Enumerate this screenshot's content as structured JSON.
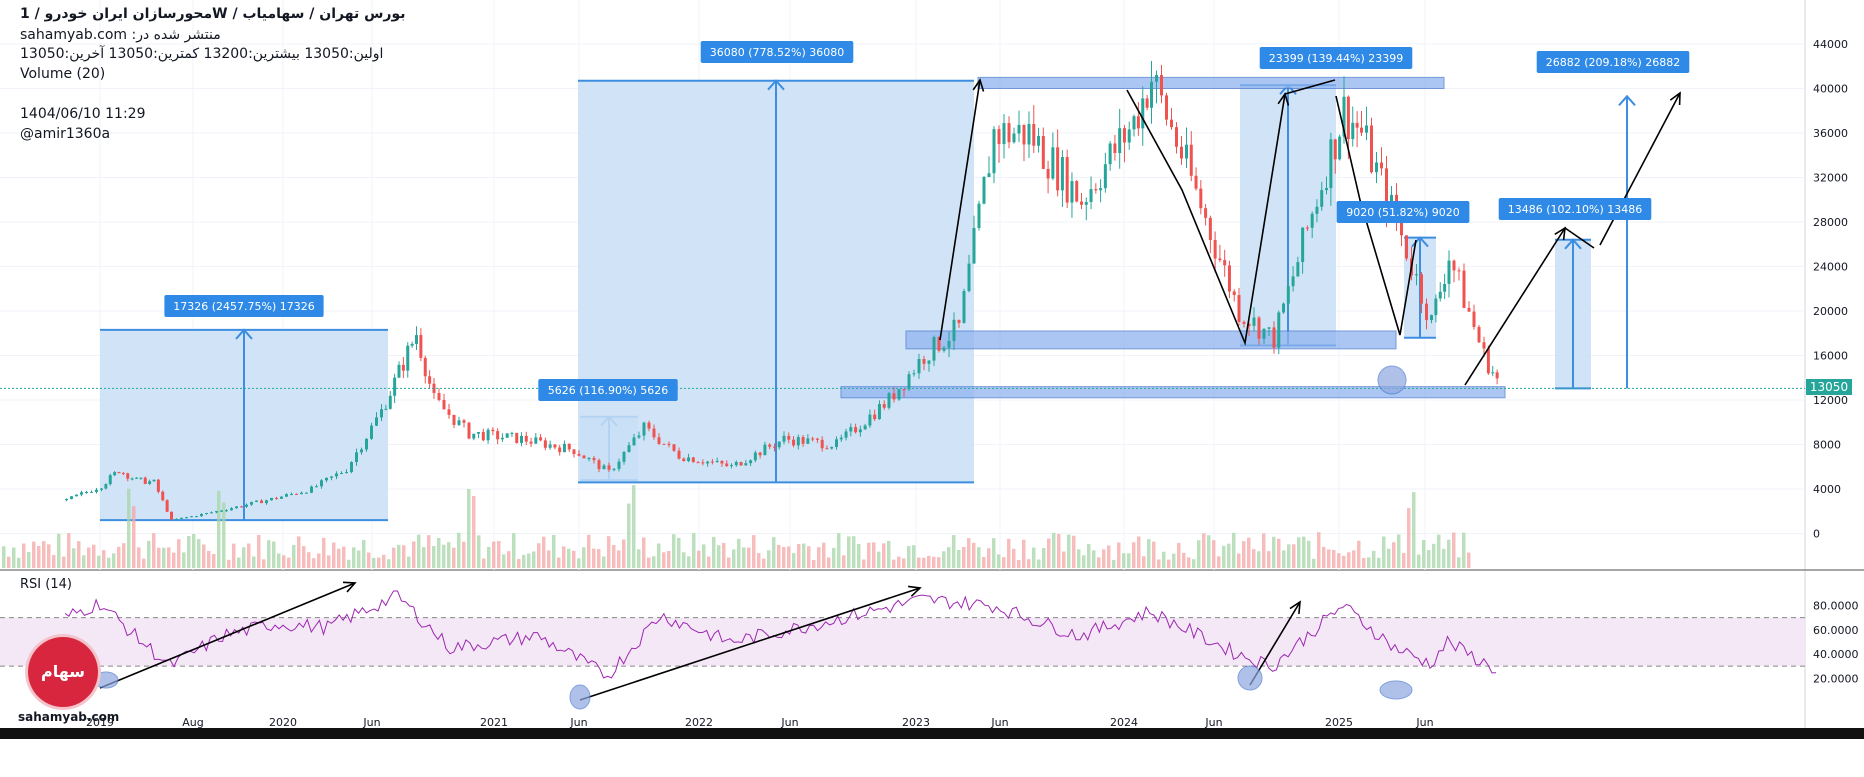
{
  "header": {
    "title": "محورسازان ایران خودرو / 1W / بورس تهران / سهامیاب",
    "published": "sahamyab.com :منتشر شده در",
    "ohlc": "اولین:13050  بیشترین:13200  کمترین:13050  آخرین:13050",
    "volume_label": "Volume (20)",
    "datetime": "1404/06/10 11:29",
    "author": "@amir1360a"
  },
  "rsi_label": "RSI (14)",
  "current_price": "13050",
  "logo": {
    "text": "سهام یاب",
    "site": "sahamyab.com"
  },
  "colors": {
    "up": "#26a69a",
    "down": "#ef5350",
    "box": "#2962ff",
    "rsi": "#9c27b0",
    "price_line": "#26a69a"
  },
  "chart_data": [
    {
      "type": "candlestick",
      "title": "محورسازان ایران خودرو / 1W / بورس تهران / سهامیاب",
      "y_ticks": [
        0,
        4000,
        8000,
        12000,
        16000,
        20000,
        24000,
        28000,
        32000,
        36000,
        40000,
        44000
      ],
      "ylim": [
        -1000,
        45500
      ],
      "x_ticks": [
        "2019",
        "Aug",
        "2020",
        "Jun",
        "2021",
        "Jun",
        "2022",
        "Jun",
        "2023",
        "Jun",
        "2024",
        "Jun",
        "2025",
        "Jun"
      ],
      "approx_close_path": [
        [
          "2018-11",
          3000
        ],
        [
          "2019-01",
          4300
        ],
        [
          "2019-02",
          5700
        ],
        [
          "2019-03",
          4800
        ],
        [
          "2019-04",
          4600
        ],
        [
          "2019-05",
          1200
        ],
        [
          "2019-07",
          1800
        ],
        [
          "2019-09",
          2500
        ],
        [
          "2019-11",
          3200
        ],
        [
          "2020-01",
          4000
        ],
        [
          "2020-03",
          5800
        ],
        [
          "2020-05",
          11000
        ],
        [
          "2020-06",
          14500
        ],
        [
          "2020-07",
          18000
        ],
        [
          "2020-08",
          12000
        ],
        [
          "2020-10",
          9000
        ],
        [
          "2021-01",
          8500
        ],
        [
          "2021-04",
          7500
        ],
        [
          "2021-06",
          5500
        ],
        [
          "2021-08",
          9500
        ],
        [
          "2021-10",
          7000
        ],
        [
          "2022-01",
          6000
        ],
        [
          "2022-04",
          8500
        ],
        [
          "2022-07",
          8000
        ],
        [
          "2022-10",
          12000
        ],
        [
          "2022-12",
          16000
        ],
        [
          "2023-02",
          18500
        ],
        [
          "2023-04",
          36000
        ],
        [
          "2023-06",
          36000
        ],
        [
          "2023-09",
          30000
        ],
        [
          "2023-12",
          37000
        ],
        [
          "2024-01",
          41000
        ],
        [
          "2024-03",
          33000
        ],
        [
          "2024-06",
          20000
        ],
        [
          "2024-08",
          17500
        ],
        [
          "2024-11",
          33000
        ],
        [
          "2024-12",
          38000
        ],
        [
          "2025-01",
          36000
        ],
        [
          "2025-03",
          28000
        ],
        [
          "2025-05",
          19000
        ],
        [
          "2025-06",
          25000
        ],
        [
          "2025-08",
          16000
        ],
        [
          "2025-09",
          13050
        ]
      ],
      "measurement_labels": [
        "17326 (2457.75%) 17326",
        "5626 (116.90%) 5626",
        "36080 (778.52%) 36080",
        "23399 (139.44%) 23399",
        "9020 (51.82%) 9020",
        "13486 (102.10%) 13486",
        "26882 (209.18%) 26882"
      ],
      "support_zones": [
        [
          40000,
          41000
        ],
        [
          16600,
          18200
        ],
        [
          12200,
          13200
        ]
      ],
      "last_price": 13050
    },
    {
      "type": "line",
      "title": "RSI (14)",
      "y_ticks": [
        "20.0000",
        "40.0000",
        "60.0000",
        "80.0000"
      ],
      "ylim": [
        15,
        95
      ],
      "bands": [
        30,
        70
      ],
      "approx_path": [
        [
          "2018-11",
          70
        ],
        [
          "2019-01",
          82
        ],
        [
          "2019-03",
          55
        ],
        [
          "2019-05",
          30
        ],
        [
          "2019-08",
          55
        ],
        [
          "2019-11",
          65
        ],
        [
          "2020-02",
          62
        ],
        [
          "2020-06",
          88
        ],
        [
          "2020-09",
          45
        ],
        [
          "2021-02",
          55
        ],
        [
          "2021-06",
          22
        ],
        [
          "2021-09",
          72
        ],
        [
          "2022-01",
          50
        ],
        [
          "2022-06",
          65
        ],
        [
          "2022-12",
          85
        ],
        [
          "2023-04",
          80
        ],
        [
          "2023-09",
          55
        ],
        [
          "2024-01",
          75
        ],
        [
          "2024-06",
          40
        ],
        [
          "2024-08",
          30
        ],
        [
          "2024-12",
          80
        ],
        [
          "2025-03",
          45
        ],
        [
          "2025-05",
          32
        ],
        [
          "2025-06",
          50
        ],
        [
          "2025-09",
          25
        ]
      ]
    }
  ]
}
